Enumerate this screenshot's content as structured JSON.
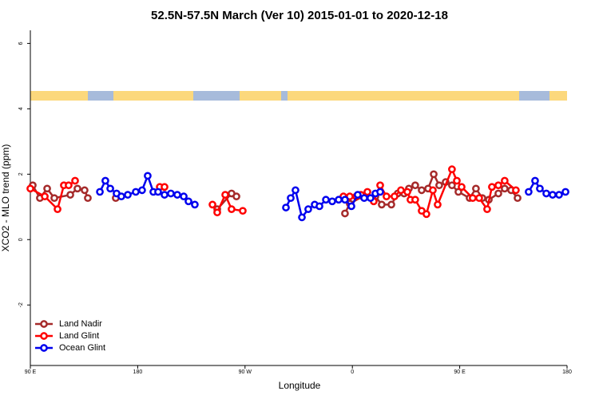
{
  "chart_data": {
    "type": "line",
    "title": "52.5N-57.5N March (Ver 10)   2015-01-01 to 2020-12-18",
    "x_label": "Longitude",
    "y_label": "XCO2 - MLO trend (ppm)",
    "xlim": [
      90,
      540
    ],
    "xticks": [
      {
        "value": 90,
        "label": "90 E"
      },
      180,
      {
        "value": 270,
        "label": "90 W"
      },
      {
        "value": 360,
        "label": "0"
      },
      {
        "value": 450,
        "label": "90 E"
      },
      {
        "value": 540,
        "label": "180"
      }
    ],
    "ylim": [
      -3.85,
      6.4
    ],
    "yticks": [
      -2,
      0,
      2,
      4,
      6
    ],
    "legend": "bottom-left",
    "series": [
      {
        "name": "Land Nadir",
        "color": "#a52a2a",
        "x": [
          92.0,
          98.0,
          104.1,
          110.1,
          123.5,
          129.5,
          135.5,
          138.2,
          null,
          161.6,
          null,
          246.7,
          258.7,
          262.8,
          null,
          353.8,
          357.8,
          368.6,
          379.3,
          384.6,
          392.7,
          398.0,
          403.4,
          407.4,
          412.7,
          418.1,
          423.5,
          428.2,
          432.8,
          438.2,
          443.5,
          448.9,
          458.3,
          463.6,
          469.0,
          474.4,
          482.4,
          487.7,
          493.1,
          498.5
        ],
        "values": [
          1.66,
          1.27,
          1.56,
          1.27,
          1.37,
          1.56,
          1.51,
          1.27,
          null,
          1.27,
          null,
          0.93,
          1.41,
          1.32,
          null,
          0.8,
          1.1,
          1.32,
          1.32,
          1.07,
          1.07,
          1.41,
          1.41,
          1.56,
          1.66,
          1.51,
          1.56,
          2.0,
          1.66,
          1.76,
          1.66,
          1.46,
          1.27,
          1.56,
          1.27,
          1.22,
          1.41,
          1.56,
          1.51,
          1.27
        ]
      },
      {
        "name": "Land Glint",
        "color": "#ff0000",
        "x": [
          90,
          102.1,
          112.8,
          118.1,
          122.1,
          127.5,
          null,
          198.5,
          202.5,
          null,
          242.7,
          246.7,
          253.4,
          258.7,
          268.1,
          null,
          352.5,
          357.8,
          363.2,
          367.2,
          372.6,
          377.9,
          383.3,
          388.6,
          395.3,
          400.7,
          406.1,
          408.7,
          412.7,
          418.1,
          422.1,
          427.5,
          431.5,
          443.5,
          447.6,
          451.6,
          460.9,
          466.3,
          473.0,
          477.0,
          482.4,
          487.7,
          497.1
        ],
        "values": [
          1.56,
          1.32,
          0.93,
          1.66,
          1.66,
          1.8,
          null,
          1.61,
          1.61,
          null,
          1.07,
          0.83,
          1.37,
          0.93,
          0.88,
          null,
          1.32,
          1.32,
          1.32,
          1.37,
          1.46,
          1.17,
          1.66,
          1.32,
          1.32,
          1.51,
          1.46,
          1.22,
          1.22,
          0.88,
          0.78,
          1.51,
          1.07,
          2.15,
          1.8,
          1.61,
          1.27,
          1.27,
          0.93,
          1.61,
          1.66,
          1.8,
          1.51
        ]
      },
      {
        "name": "Ocean Glint",
        "color": "#0000ee",
        "x": [
          148.3,
          152.9,
          157.0,
          162.3,
          166.3,
          171.7,
          178.4,
          183.7,
          188.4,
          193.1,
          197.1,
          202.5,
          207.8,
          213.2,
          218.6,
          222.6,
          227.9,
          null,
          304.3,
          308.3,
          312.3,
          317.7,
          323.0,
          328.4,
          332.4,
          337.8,
          343.1,
          348.5,
          353.8,
          359.2,
          364.5,
          369.9,
          375.2,
          379.3,
          383.3,
          null,
          507.8,
          513.2,
          517.2,
          522.6,
          527.9,
          533.3,
          538.7
        ],
        "values": [
          1.46,
          1.8,
          1.56,
          1.41,
          1.32,
          1.37,
          1.46,
          1.51,
          1.95,
          1.46,
          1.46,
          1.37,
          1.41,
          1.37,
          1.32,
          1.17,
          1.07,
          null,
          0.98,
          1.27,
          1.51,
          0.68,
          0.93,
          1.07,
          1.02,
          1.22,
          1.17,
          1.22,
          1.22,
          1.02,
          1.37,
          1.27,
          1.27,
          1.41,
          1.46,
          null,
          1.46,
          1.8,
          1.56,
          1.41,
          1.37,
          1.37,
          1.46
        ]
      }
    ]
  }
}
